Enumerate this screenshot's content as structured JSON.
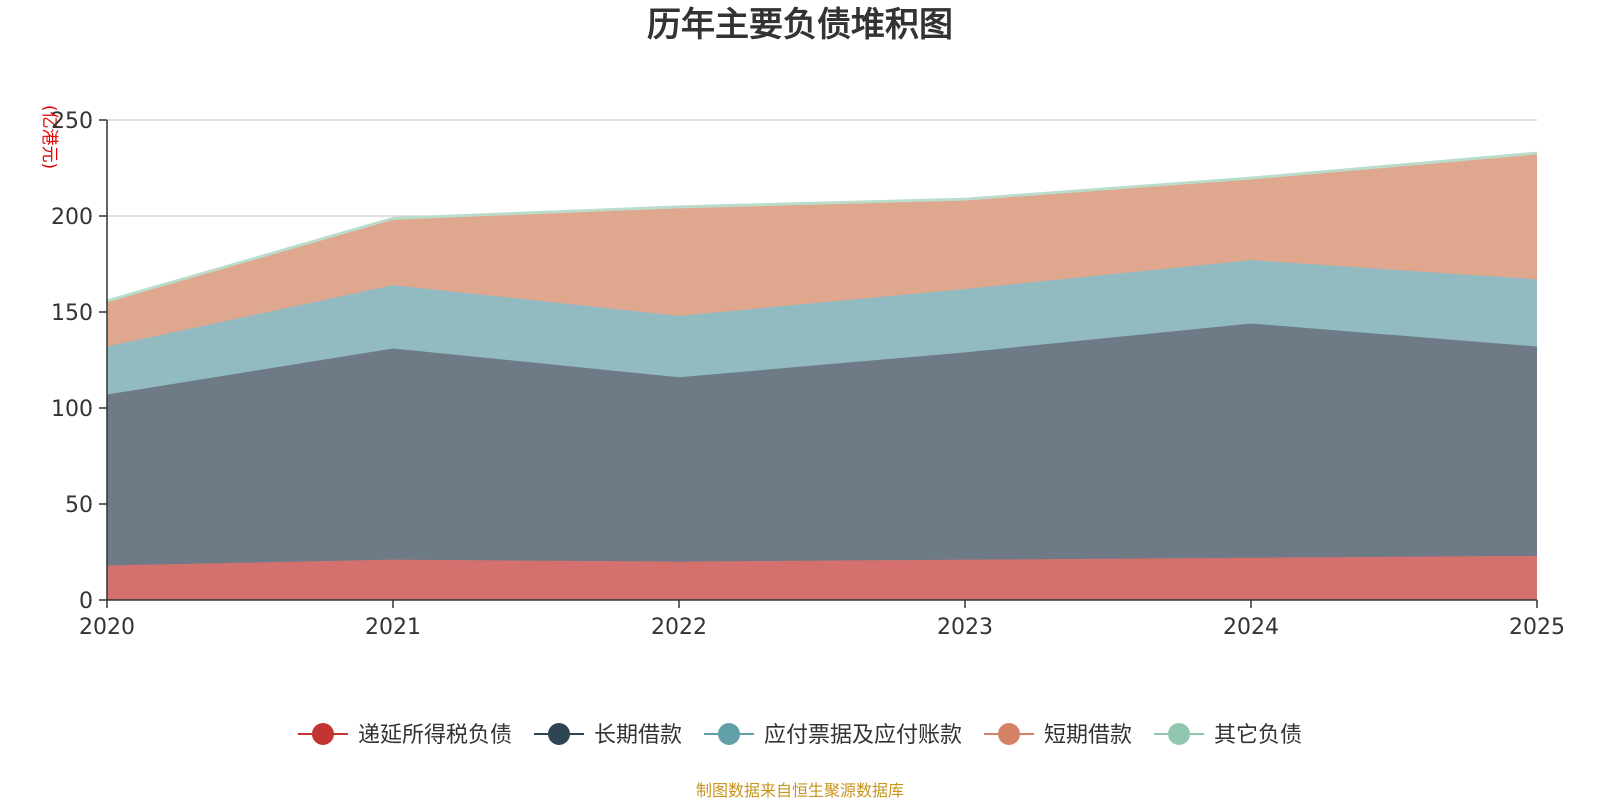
{
  "chart_data": {
    "type": "area",
    "stacked": true,
    "title": "历年主要负债堆积图",
    "ylabel": "(亿港元)",
    "xlabel": "",
    "x": [
      "2020",
      "2021",
      "2022",
      "2023",
      "2024",
      "2025"
    ],
    "ylim": [
      0,
      250
    ],
    "yticks": [
      "0",
      "50",
      "100",
      "150",
      "200",
      "250"
    ],
    "grid": true,
    "legend_position": "bottom",
    "series": [
      {
        "name": "递延所得税负债",
        "color": "#c23531",
        "fill": "#d4716e",
        "values": [
          18,
          21,
          20,
          21,
          22,
          23
        ]
      },
      {
        "name": "长期借款",
        "color": "#2f4554",
        "fill": "#6e7b86",
        "values": [
          89,
          110,
          96,
          108,
          122,
          109
        ]
      },
      {
        "name": "应付票据及应付账款",
        "color": "#61a0a8",
        "fill": "#91bbc1",
        "values": [
          25,
          33,
          32,
          33,
          33,
          35
        ]
      },
      {
        "name": "短期借款",
        "color": "#d48265",
        "fill": "#e0a78f",
        "values": [
          23,
          34,
          56,
          46,
          42,
          65
        ]
      },
      {
        "name": "其它负债",
        "color": "#91c7ae",
        "fill": "#b9dccb",
        "values": [
          1,
          1,
          1,
          1,
          1,
          1
        ]
      }
    ],
    "source_note": "制图数据来自恒生聚源数据库"
  }
}
